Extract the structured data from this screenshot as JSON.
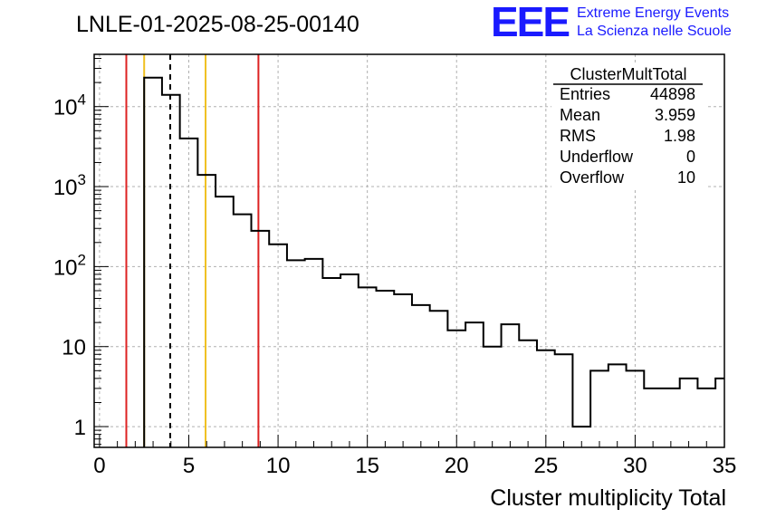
{
  "header": {
    "title": "LNLE-01-2025-08-25-00140",
    "logo_text": "EEE",
    "logo_line1": "Extreme Energy Events",
    "logo_line2": "La Scienza nelle Scuole",
    "logo_color": "#1a1aff"
  },
  "stats_box": {
    "title": "ClusterMultTotal",
    "rows": [
      {
        "label": "Entries",
        "value": "44898"
      },
      {
        "label": "Mean",
        "value": "3.959"
      },
      {
        "label": "RMS",
        "value": "1.98"
      },
      {
        "label": "Underflow",
        "value": "0"
      },
      {
        "label": "Overflow",
        "value": "10"
      }
    ]
  },
  "chart_data": {
    "type": "histogram",
    "title": "LNLE-01-2025-08-25-00140",
    "xlabel": "Cluster multiplicity Total",
    "ylabel": "",
    "xlim": [
      -0.3,
      35
    ],
    "ylim": [
      0.55,
      45000
    ],
    "yscale": "log",
    "grid": true,
    "bin_width": 1,
    "bins": [
      {
        "x0": 2.5,
        "x1": 3.5,
        "count": 23000
      },
      {
        "x0": 3.5,
        "x1": 4.5,
        "count": 14000
      },
      {
        "x0": 4.5,
        "x1": 5.5,
        "count": 4000
      },
      {
        "x0": 5.5,
        "x1": 6.5,
        "count": 1400
      },
      {
        "x0": 6.5,
        "x1": 7.5,
        "count": 750
      },
      {
        "x0": 7.5,
        "x1": 8.5,
        "count": 450
      },
      {
        "x0": 8.5,
        "x1": 9.5,
        "count": 280
      },
      {
        "x0": 9.5,
        "x1": 10.5,
        "count": 190
      },
      {
        "x0": 10.5,
        "x1": 11.5,
        "count": 120
      },
      {
        "x0": 11.5,
        "x1": 12.5,
        "count": 125
      },
      {
        "x0": 12.5,
        "x1": 13.5,
        "count": 72
      },
      {
        "x0": 13.5,
        "x1": 14.5,
        "count": 80
      },
      {
        "x0": 14.5,
        "x1": 15.5,
        "count": 55
      },
      {
        "x0": 15.5,
        "x1": 16.5,
        "count": 50
      },
      {
        "x0": 16.5,
        "x1": 17.5,
        "count": 45
      },
      {
        "x0": 17.5,
        "x1": 18.5,
        "count": 33
      },
      {
        "x0": 18.5,
        "x1": 19.5,
        "count": 28
      },
      {
        "x0": 19.5,
        "x1": 20.5,
        "count": 16
      },
      {
        "x0": 20.5,
        "x1": 21.5,
        "count": 20
      },
      {
        "x0": 21.5,
        "x1": 22.5,
        "count": 10
      },
      {
        "x0": 22.5,
        "x1": 23.5,
        "count": 19
      },
      {
        "x0": 23.5,
        "x1": 24.5,
        "count": 12
      },
      {
        "x0": 24.5,
        "x1": 25.5,
        "count": 9
      },
      {
        "x0": 25.5,
        "x1": 26.5,
        "count": 8
      },
      {
        "x0": 26.5,
        "x1": 27.5,
        "count": 1
      },
      {
        "x0": 27.5,
        "x1": 28.5,
        "count": 5
      },
      {
        "x0": 28.5,
        "x1": 29.5,
        "count": 6
      },
      {
        "x0": 29.5,
        "x1": 30.5,
        "count": 5
      },
      {
        "x0": 30.5,
        "x1": 31.5,
        "count": 3
      },
      {
        "x0": 31.5,
        "x1": 32.5,
        "count": 3
      },
      {
        "x0": 32.5,
        "x1": 33.5,
        "count": 4
      },
      {
        "x0": 33.5,
        "x1": 34.5,
        "count": 3
      },
      {
        "x0": 34.5,
        "x1": 35,
        "count": 4
      }
    ],
    "reference_lines": [
      {
        "x": 1.5,
        "color": "#dd2222",
        "style": "solid"
      },
      {
        "x": 2.5,
        "color": "#f0c020",
        "style": "solid"
      },
      {
        "x": 3.959,
        "color": "#000000",
        "style": "dashed"
      },
      {
        "x": 5.94,
        "color": "#f0c020",
        "style": "solid"
      },
      {
        "x": 8.9,
        "color": "#dd2222",
        "style": "solid"
      }
    ],
    "x_ticks": [
      "0",
      "5",
      "10",
      "15",
      "20",
      "25",
      "30",
      "35"
    ],
    "y_ticks": [
      {
        "value": 1,
        "base": "1",
        "exp": ""
      },
      {
        "value": 10,
        "base": "10",
        "exp": ""
      },
      {
        "value": 100,
        "base": "10",
        "exp": "2"
      },
      {
        "value": 1000,
        "base": "10",
        "exp": "3"
      },
      {
        "value": 10000,
        "base": "10",
        "exp": "4"
      }
    ]
  }
}
